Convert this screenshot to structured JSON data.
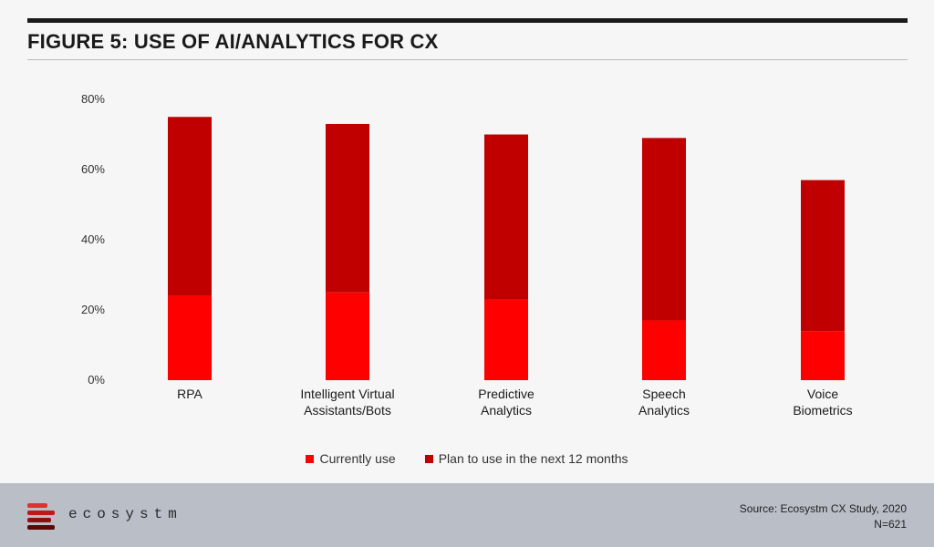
{
  "header": {
    "title": "FIGURE 5: USE OF AI/ANALYTICS FOR CX"
  },
  "colors": {
    "currently": "#ff0000",
    "plan": "#c00000"
  },
  "chart_data": {
    "type": "bar",
    "stacked": true,
    "categories": [
      [
        "RPA"
      ],
      [
        "Intelligent Virtual",
        "Assistants/Bots"
      ],
      [
        "Predictive",
        "Analytics"
      ],
      [
        "Speech",
        "Analytics"
      ],
      [
        "Voice",
        "Biometrics"
      ]
    ],
    "series": [
      {
        "name": "Currently use",
        "values": [
          24,
          25,
          23,
          17,
          14
        ]
      },
      {
        "name": "Plan to use in the next 12 months",
        "values": [
          51,
          48,
          47,
          52,
          43
        ]
      }
    ],
    "ylim": [
      0,
      80
    ],
    "yticks": [
      {
        "value": 0,
        "label": "0%"
      },
      {
        "value": 20,
        "label": "20%"
      },
      {
        "value": 40,
        "label": "40%"
      },
      {
        "value": 60,
        "label": "60%"
      },
      {
        "value": 80,
        "label": "80%"
      }
    ],
    "grid": false,
    "legend_position": "bottom"
  },
  "legend": {
    "currently": "Currently use",
    "plan": "Plan to use in the next 12 months"
  },
  "footer": {
    "brand": "ecosystm",
    "source": "Source: Ecosystm CX Study, 2020",
    "n": "N=621"
  }
}
